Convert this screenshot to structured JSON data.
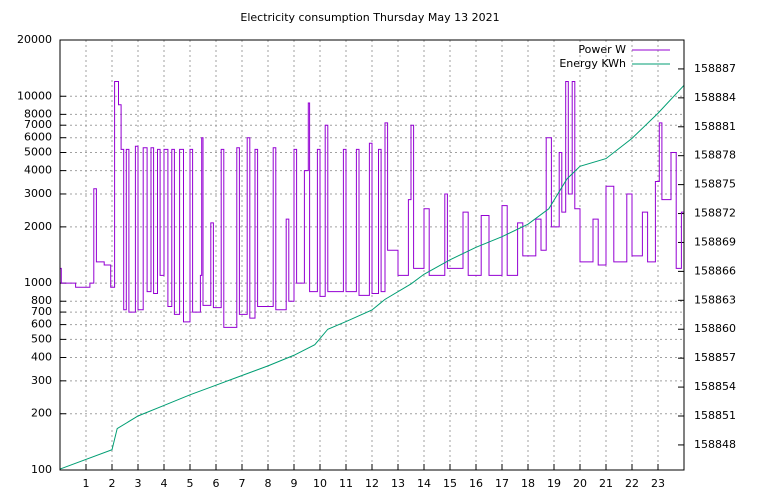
{
  "chart_data": {
    "type": "line",
    "title": "Electricity consumption Thursday May 13 2021",
    "xlim": [
      0,
      24
    ],
    "xticks": [
      1,
      2,
      3,
      4,
      5,
      6,
      7,
      8,
      9,
      10,
      11,
      12,
      13,
      14,
      15,
      16,
      17,
      18,
      19,
      20,
      21,
      22,
      23
    ],
    "ylim": [
      100,
      20000
    ],
    "log_y": true,
    "yticks": [
      100,
      200,
      300,
      400,
      500,
      600,
      700,
      800,
      1000,
      2000,
      3000,
      4000,
      5000,
      6000,
      7000,
      8000,
      10000,
      20000
    ],
    "y2lim": [
      158845.4,
      158890
    ],
    "y2ticks": [
      158848,
      158851,
      158854,
      158857,
      158860,
      158863,
      158866,
      158869,
      158872,
      158875,
      158878,
      158881,
      158884,
      158887
    ],
    "grid": true,
    "legend": "top-right",
    "series": [
      {
        "name": "Power W",
        "color": "#9400d3",
        "step": true,
        "x": [
          0,
          0.05,
          0.6,
          1.15,
          1.3,
          1.4,
          1.7,
          1.95,
          2.1,
          2.25,
          2.35,
          2.45,
          2.55,
          2.65,
          2.9,
          3.0,
          3.2,
          3.35,
          3.5,
          3.6,
          3.75,
          3.85,
          4.0,
          4.15,
          4.3,
          4.4,
          4.6,
          4.75,
          5.0,
          5.1,
          5.4,
          5.45,
          5.5,
          5.8,
          5.9,
          6.2,
          6.3,
          6.8,
          6.9,
          7.2,
          7.3,
          7.5,
          7.6,
          8.2,
          8.3,
          8.7,
          8.8,
          9.0,
          9.1,
          9.4,
          9.55,
          9.6,
          9.9,
          10.0,
          10.2,
          10.3,
          10.9,
          11.0,
          11.4,
          11.5,
          11.9,
          12.0,
          12.25,
          12.35,
          12.5,
          12.6,
          13.0,
          13.4,
          13.5,
          13.6,
          14.0,
          14.2,
          14.8,
          14.9,
          15.5,
          15.7,
          16.2,
          16.5,
          17.0,
          17.2,
          17.6,
          17.8,
          18.3,
          18.5,
          18.7,
          18.9,
          19.2,
          19.3,
          19.45,
          19.55,
          19.7,
          19.8,
          20.0,
          20.5,
          20.7,
          21.0,
          21.3,
          21.8,
          22.0,
          22.4,
          22.6,
          22.9,
          23.05,
          23.15,
          23.5,
          23.7,
          23.9,
          24
        ],
        "values": [
          1200,
          1000,
          950,
          1000,
          3200,
          1300,
          1250,
          950,
          12000,
          9000,
          5200,
          720,
          5200,
          700,
          5400,
          720,
          5300,
          900,
          5300,
          880,
          5200,
          1100,
          5200,
          750,
          5200,
          680,
          5200,
          620,
          5200,
          700,
          1100,
          6000,
          760,
          2100,
          740,
          5200,
          580,
          5300,
          680,
          6000,
          650,
          5200,
          750,
          5300,
          720,
          2200,
          800,
          5200,
          1000,
          4000,
          9200,
          900,
          5200,
          850,
          7000,
          900,
          5200,
          900,
          5200,
          860,
          5600,
          880,
          5200,
          900,
          7200,
          1500,
          1100,
          2800,
          7000,
          1200,
          2500,
          1100,
          3000,
          1200,
          2400,
          1100,
          2300,
          1100,
          2600,
          1100,
          2100,
          1400,
          2200,
          1500,
          6000,
          2000,
          5000,
          2400,
          12000,
          3000,
          12000,
          2500,
          1300,
          2200,
          1250,
          3300,
          1300,
          3000,
          1400,
          2400,
          1300,
          3500,
          7200,
          2800,
          5000,
          1200,
          2400,
          2400
        ]
      },
      {
        "name": "Energy KWh",
        "color": "#009e73",
        "axis": "y2",
        "x": [
          0,
          2,
          2.2,
          3,
          4,
          5,
          6,
          7,
          8,
          9,
          9.8,
          10.3,
          11,
          12,
          12.5,
          13.5,
          14,
          15,
          16,
          17,
          18,
          18.8,
          19.5,
          20,
          21,
          22,
          23,
          24
        ],
        "values": [
          158845.5,
          158847.5,
          158849.7,
          158851,
          158852.1,
          158853.2,
          158854.2,
          158855.2,
          158856.2,
          158857.3,
          158858.4,
          158860,
          158860.8,
          158862,
          158863.1,
          158864.7,
          158865.7,
          158867.2,
          158868.5,
          158869.6,
          158870.9,
          158872.5,
          158875.6,
          158876.9,
          158877.7,
          158879.8,
          158882.4,
          158885.3
        ]
      }
    ]
  }
}
